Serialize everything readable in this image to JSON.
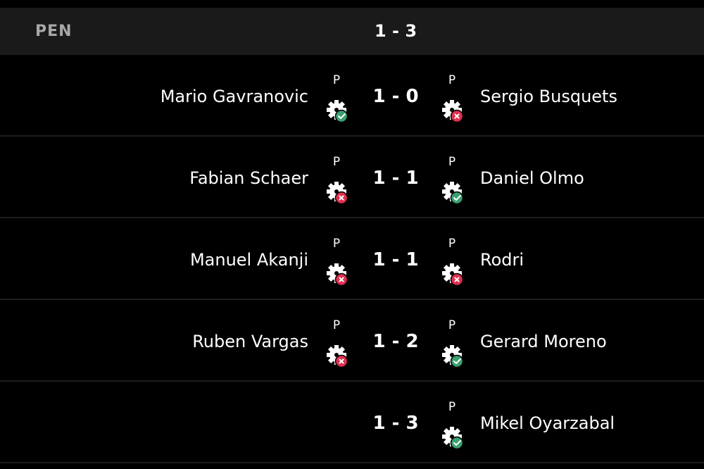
{
  "header": {
    "label": "PEN",
    "score": "1 - 3"
  },
  "colors": {
    "scored": "#3aa070",
    "missed": "#e0304f",
    "header_bg": "#1a1a1a"
  },
  "rows": [
    {
      "home": "Mario Gavranovic",
      "home_marker": "P",
      "home_result": "scored",
      "score": "1 - 0",
      "away": "Sergio Busquets",
      "away_marker": "P",
      "away_result": "missed"
    },
    {
      "home": "Fabian Schaer",
      "home_marker": "P",
      "home_result": "missed",
      "score": "1 - 1",
      "away": "Daniel Olmo",
      "away_marker": "P",
      "away_result": "scored"
    },
    {
      "home": "Manuel Akanji",
      "home_marker": "P",
      "home_result": "missed",
      "score": "1 - 1",
      "away": "Rodri",
      "away_marker": "P",
      "away_result": "missed"
    },
    {
      "home": "Ruben Vargas",
      "home_marker": "P",
      "home_result": "missed",
      "score": "1 - 2",
      "away": "Gerard Moreno",
      "away_marker": "P",
      "away_result": "scored"
    },
    {
      "home": "",
      "home_marker": "",
      "home_result": "",
      "score": "1 - 3",
      "away": "Mikel Oyarzabal",
      "away_marker": "P",
      "away_result": "scored"
    }
  ]
}
